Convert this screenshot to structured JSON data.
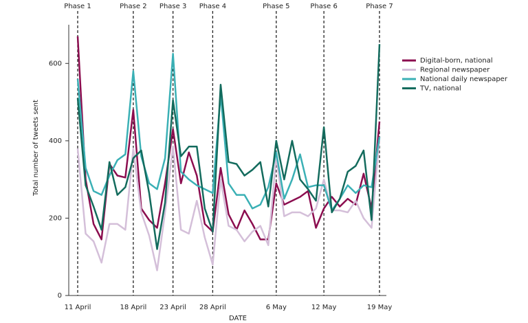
{
  "chart_data": {
    "type": "line",
    "y_label": "Total number of tweets sent",
    "x_label": "DATE",
    "categories": [
      "11 April",
      null,
      null,
      null,
      null,
      null,
      null,
      "18 April",
      null,
      null,
      null,
      null,
      "23 April",
      null,
      null,
      null,
      null,
      "28 April",
      null,
      null,
      null,
      null,
      null,
      null,
      null,
      "6 May",
      null,
      null,
      null,
      null,
      null,
      "12 May",
      null,
      null,
      null,
      null,
      null,
      null,
      "19 May"
    ],
    "ylim": [
      0,
      700
    ],
    "yticks": [
      0,
      200,
      400,
      600
    ],
    "annotations": [
      {
        "text": "Phase 1",
        "x": 0
      },
      {
        "text": "Phase 2",
        "x": 7
      },
      {
        "text": "Phase 3",
        "x": 12
      },
      {
        "text": "Phase 4",
        "x": 17
      },
      {
        "text": "Phase 5",
        "x": 25
      },
      {
        "text": "Phase 6",
        "x": 31
      },
      {
        "text": "Phase 7",
        "x": 38
      }
    ],
    "series": [
      {
        "name": "Digital-born, national",
        "color": "#8b0d4f",
        "values": [
          670,
          300,
          185,
          145,
          340,
          310,
          305,
          480,
          225,
          195,
          175,
          290,
          430,
          290,
          370,
          310,
          185,
          165,
          330,
          210,
          170,
          220,
          185,
          145,
          145,
          290,
          235,
          245,
          255,
          270,
          175,
          225,
          255,
          230,
          250,
          235,
          315,
          225,
          450
        ]
      },
      {
        "name": "Regional newspaper",
        "color": "#d4bfd9",
        "values": [
          380,
          160,
          140,
          85,
          185,
          185,
          170,
          380,
          215,
          155,
          65,
          215,
          385,
          170,
          160,
          245,
          150,
          80,
          300,
          180,
          170,
          140,
          165,
          180,
          130,
          360,
          205,
          215,
          215,
          205,
          225,
          300,
          220,
          220,
          215,
          245,
          200,
          175,
          410
        ]
      },
      {
        "name": "National daily newspaper",
        "color": "#3ab0b5",
        "values": [
          560,
          330,
          270,
          260,
          310,
          350,
          365,
          580,
          360,
          290,
          275,
          355,
          625,
          320,
          300,
          285,
          275,
          265,
          520,
          290,
          260,
          260,
          225,
          235,
          280,
          370,
          250,
          300,
          365,
          280,
          285,
          285,
          220,
          250,
          285,
          265,
          285,
          280,
          410
        ]
      },
      {
        "name": "TV, national",
        "color": "#136b5d",
        "values": [
          510,
          285,
          230,
          170,
          345,
          260,
          280,
          355,
          375,
          265,
          120,
          240,
          505,
          360,
          385,
          385,
          225,
          165,
          545,
          345,
          340,
          310,
          325,
          345,
          230,
          400,
          300,
          400,
          300,
          275,
          245,
          435,
          215,
          250,
          320,
          335,
          375,
          195,
          650
        ]
      }
    ]
  }
}
